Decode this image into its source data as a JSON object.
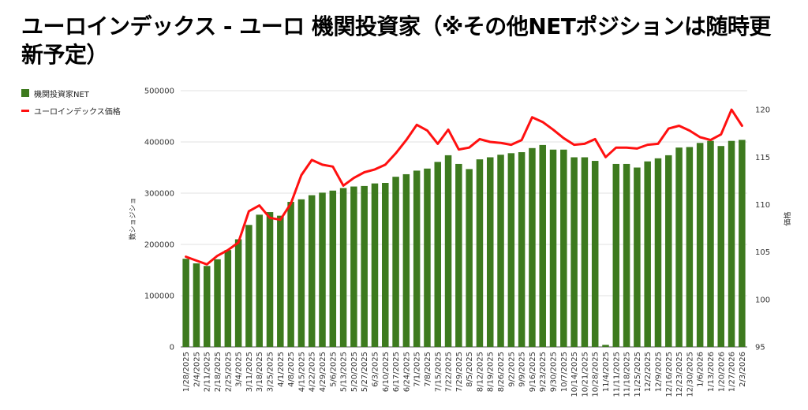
{
  "title": "ユーロインデックス - ユーロ 機関投資家（※その他NETポジションは随時更新予定）",
  "legend": {
    "bar_label": "機関投資家NET",
    "line_label": "ユーロインデックス価格"
  },
  "colors": {
    "bar": "#3d7a1e",
    "line": "#ff1010"
  },
  "chart_data": {
    "type": "bar+line",
    "title": "ユーロインデックス - ユーロ 機関投資家（※その他NETポジションは随時更新予定）",
    "xlabel": "",
    "ylabel": "数ショジショ",
    "y2label": "価格",
    "ylim": [
      0,
      500000
    ],
    "y2lim": [
      95,
      122
    ],
    "yticks": [
      0,
      100000,
      200000,
      300000,
      400000,
      500000
    ],
    "y2ticks": [
      95,
      100,
      105,
      110,
      115,
      120
    ],
    "grid": true,
    "legend_position": "top-left",
    "categories": [
      "1/28/2025",
      "2/4/2025",
      "2/11/2025",
      "2/18/2025",
      "2/25/2025",
      "3/4/2025",
      "3/11/2025",
      "3/18/2025",
      "3/25/2025",
      "4/1/2025",
      "4/8/2025",
      "4/15/2025",
      "4/22/2025",
      "4/29/2025",
      "5/6/2025",
      "5/13/2025",
      "5/20/2025",
      "5/27/2025",
      "6/3/2025",
      "6/10/2025",
      "6/17/2025",
      "6/24/2025",
      "7/1/2025",
      "7/8/2025",
      "7/15/2025",
      "7/22/2025",
      "7/29/2025",
      "8/5/2025",
      "8/12/2025",
      "8/19/2025",
      "8/26/2025",
      "9/2/2025",
      "9/9/2025",
      "9/16/2025",
      "9/23/2025",
      "9/30/2025",
      "10/7/2025",
      "10/14/2025",
      "10/21/2025",
      "10/28/2025",
      "11/4/2025",
      "11/11/2025",
      "11/18/2025",
      "11/25/2025",
      "12/2/2025",
      "12/9/2025",
      "12/16/2025",
      "12/23/2025",
      "12/30/2025",
      "1/6/2026",
      "1/13/2026",
      "1/20/2026",
      "1/27/2026",
      "2/3/2026"
    ],
    "series": [
      {
        "name": "機関投資家NET",
        "type": "bar",
        "axis": "left",
        "values": [
          172000,
          163000,
          158000,
          171000,
          189000,
          210000,
          238000,
          258000,
          263000,
          256000,
          283000,
          288000,
          296000,
          301000,
          305000,
          310000,
          313000,
          314000,
          319000,
          320000,
          332000,
          337000,
          344000,
          348000,
          361000,
          374000,
          357000,
          347000,
          366000,
          370000,
          375000,
          378000,
          380000,
          388000,
          394000,
          385000,
          385000,
          370000,
          370000,
          363000,
          4000,
          357000,
          357000,
          350000,
          362000,
          368000,
          374000,
          389000,
          390000,
          398000,
          402000,
          392000,
          402000,
          404000
        ]
      },
      {
        "name": "ユーロインデックス価格",
        "type": "line",
        "axis": "right",
        "values": [
          104.5,
          104.1,
          103.7,
          104.6,
          105.2,
          106.0,
          109.3,
          109.9,
          108.6,
          108.4,
          110.1,
          113.1,
          114.7,
          114.2,
          114.0,
          112.0,
          112.8,
          113.4,
          113.7,
          114.2,
          115.4,
          116.8,
          118.4,
          117.8,
          116.4,
          117.9,
          115.8,
          116.0,
          116.9,
          116.6,
          116.5,
          116.3,
          116.8,
          119.2,
          118.7,
          117.9,
          117.0,
          116.3,
          116.4,
          116.9,
          115.0,
          116.0,
          116.0,
          115.9,
          116.3,
          116.4,
          118.0,
          118.3,
          117.8,
          117.1,
          116.8,
          117.4,
          120.0,
          118.3
        ]
      }
    ]
  }
}
